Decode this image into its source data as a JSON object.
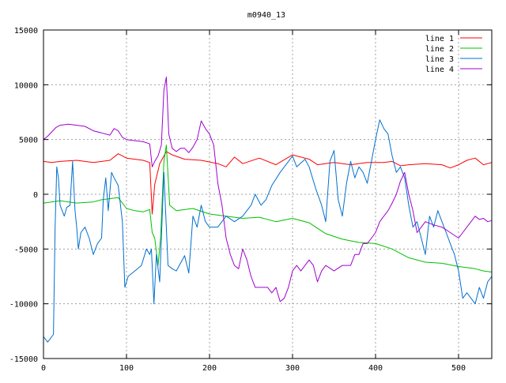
{
  "chart_data": {
    "type": "line",
    "title": "m0940_13",
    "xlabel": "",
    "ylabel": "",
    "xlim": [
      0,
      540
    ],
    "ylim": [
      -15000,
      15000
    ],
    "x_ticks": [
      0,
      100,
      200,
      300,
      400,
      500
    ],
    "y_ticks": [
      -15000,
      -10000,
      -5000,
      0,
      5000,
      10000,
      15000
    ],
    "x_tick_labels": [
      "0",
      "100",
      "200",
      "300",
      "400",
      "500"
    ],
    "y_tick_labels": [
      "-15000",
      "-10000",
      "-5000",
      "0",
      "5000",
      "10000",
      "15000"
    ],
    "grid": true,
    "legend_position": "top-right",
    "series": [
      {
        "name": "line 1",
        "color": "#ff0000",
        "points": [
          [
            0,
            3000
          ],
          [
            10,
            2900
          ],
          [
            20,
            3000
          ],
          [
            40,
            3100
          ],
          [
            60,
            2900
          ],
          [
            80,
            3100
          ],
          [
            90,
            3700
          ],
          [
            100,
            3300
          ],
          [
            110,
            3200
          ],
          [
            120,
            3100
          ],
          [
            128,
            2900
          ],
          [
            131,
            -1800
          ],
          [
            134,
            900
          ],
          [
            140,
            2800
          ],
          [
            148,
            3900
          ],
          [
            155,
            3600
          ],
          [
            170,
            3200
          ],
          [
            190,
            3100
          ],
          [
            210,
            2800
          ],
          [
            220,
            2500
          ],
          [
            230,
            3400
          ],
          [
            240,
            2800
          ],
          [
            260,
            3300
          ],
          [
            280,
            2700
          ],
          [
            300,
            3600
          ],
          [
            320,
            3200
          ],
          [
            330,
            2700
          ],
          [
            350,
            2900
          ],
          [
            370,
            2700
          ],
          [
            390,
            2900
          ],
          [
            410,
            2900
          ],
          [
            420,
            3000
          ],
          [
            430,
            2600
          ],
          [
            440,
            2700
          ],
          [
            460,
            2800
          ],
          [
            480,
            2700
          ],
          [
            490,
            2400
          ],
          [
            500,
            2700
          ],
          [
            510,
            3100
          ],
          [
            520,
            3300
          ],
          [
            530,
            2700
          ],
          [
            540,
            2900
          ]
        ]
      },
      {
        "name": "line 2",
        "color": "#00c000",
        "points": [
          [
            0,
            -800
          ],
          [
            10,
            -700
          ],
          [
            20,
            -600
          ],
          [
            40,
            -800
          ],
          [
            60,
            -700
          ],
          [
            70,
            -500
          ],
          [
            90,
            -300
          ],
          [
            100,
            -1300
          ],
          [
            110,
            -1500
          ],
          [
            120,
            -1600
          ],
          [
            128,
            -1400
          ],
          [
            131,
            -3500
          ],
          [
            134,
            -4000
          ],
          [
            138,
            -6500
          ],
          [
            141,
            -4000
          ],
          [
            145,
            3000
          ],
          [
            148,
            4500
          ],
          [
            152,
            -1000
          ],
          [
            160,
            -1500
          ],
          [
            180,
            -1300
          ],
          [
            200,
            -1800
          ],
          [
            220,
            -2000
          ],
          [
            240,
            -2200
          ],
          [
            260,
            -2100
          ],
          [
            280,
            -2500
          ],
          [
            300,
            -2200
          ],
          [
            320,
            -2600
          ],
          [
            340,
            -3600
          ],
          [
            360,
            -4100
          ],
          [
            380,
            -4400
          ],
          [
            400,
            -4500
          ],
          [
            420,
            -5000
          ],
          [
            440,
            -5800
          ],
          [
            460,
            -6200
          ],
          [
            480,
            -6300
          ],
          [
            500,
            -6600
          ],
          [
            520,
            -6800
          ],
          [
            530,
            -7000
          ],
          [
            540,
            -7100
          ]
        ]
      },
      {
        "name": "line 3",
        "color": "#0070d0",
        "points": [
          [
            0,
            -13000
          ],
          [
            5,
            -13500
          ],
          [
            12,
            -12800
          ],
          [
            14,
            -3000
          ],
          [
            16,
            2500
          ],
          [
            18,
            1500
          ],
          [
            20,
            -1000
          ],
          [
            25,
            -2000
          ],
          [
            28,
            -1200
          ],
          [
            32,
            -1000
          ],
          [
            35,
            3000
          ],
          [
            38,
            -1500
          ],
          [
            40,
            -3000
          ],
          [
            42,
            -5000
          ],
          [
            45,
            -3500
          ],
          [
            50,
            -3000
          ],
          [
            55,
            -4000
          ],
          [
            60,
            -5500
          ],
          [
            65,
            -4500
          ],
          [
            70,
            -4000
          ],
          [
            72,
            -500
          ],
          [
            75,
            1500
          ],
          [
            78,
            -1500
          ],
          [
            82,
            2000
          ],
          [
            85,
            1500
          ],
          [
            90,
            800
          ],
          [
            95,
            -2500
          ],
          [
            98,
            -8500
          ],
          [
            102,
            -7500
          ],
          [
            110,
            -7000
          ],
          [
            118,
            -6500
          ],
          [
            124,
            -5000
          ],
          [
            128,
            -5500
          ],
          [
            130,
            -5000
          ],
          [
            133,
            -10000
          ],
          [
            136,
            -5500
          ],
          [
            140,
            -8000
          ],
          [
            145,
            2000
          ],
          [
            150,
            -6500
          ],
          [
            155,
            -6800
          ],
          [
            160,
            -7000
          ],
          [
            170,
            -5600
          ],
          [
            175,
            -7200
          ],
          [
            180,
            -2000
          ],
          [
            185,
            -3000
          ],
          [
            190,
            -1000
          ],
          [
            195,
            -2500
          ],
          [
            200,
            -3000
          ],
          [
            210,
            -3000
          ],
          [
            220,
            -2000
          ],
          [
            230,
            -2500
          ],
          [
            240,
            -2000
          ],
          [
            250,
            -1000
          ],
          [
            255,
            0
          ],
          [
            262,
            -1000
          ],
          [
            268,
            -500
          ],
          [
            275,
            800
          ],
          [
            285,
            2000
          ],
          [
            295,
            3000
          ],
          [
            300,
            3500
          ],
          [
            305,
            2500
          ],
          [
            315,
            3200
          ],
          [
            320,
            2500
          ],
          [
            328,
            500
          ],
          [
            335,
            -1000
          ],
          [
            340,
            -2500
          ],
          [
            345,
            3000
          ],
          [
            350,
            4000
          ],
          [
            355,
            -500
          ],
          [
            360,
            -2000
          ],
          [
            365,
            1000
          ],
          [
            370,
            3000
          ],
          [
            375,
            1500
          ],
          [
            380,
            2500
          ],
          [
            385,
            2000
          ],
          [
            390,
            1000
          ],
          [
            395,
            3000
          ],
          [
            400,
            5000
          ],
          [
            405,
            6800
          ],
          [
            410,
            6000
          ],
          [
            415,
            5500
          ],
          [
            420,
            3500
          ],
          [
            425,
            2000
          ],
          [
            430,
            2500
          ],
          [
            435,
            1500
          ],
          [
            440,
            -1000
          ],
          [
            445,
            -3000
          ],
          [
            450,
            -2500
          ],
          [
            455,
            -4000
          ],
          [
            460,
            -5500
          ],
          [
            465,
            -2000
          ],
          [
            470,
            -3000
          ],
          [
            475,
            -1500
          ],
          [
            480,
            -2500
          ],
          [
            485,
            -3500
          ],
          [
            490,
            -4500
          ],
          [
            495,
            -5500
          ],
          [
            500,
            -7000
          ],
          [
            505,
            -9500
          ],
          [
            510,
            -9000
          ],
          [
            515,
            -9500
          ],
          [
            520,
            -10000
          ],
          [
            525,
            -8500
          ],
          [
            530,
            -9500
          ],
          [
            535,
            -8000
          ],
          [
            540,
            -7500
          ]
        ]
      },
      {
        "name": "line 4",
        "color": "#a000d0",
        "points": [
          [
            0,
            5000
          ],
          [
            5,
            5300
          ],
          [
            10,
            5700
          ],
          [
            15,
            6100
          ],
          [
            20,
            6300
          ],
          [
            30,
            6400
          ],
          [
            40,
            6300
          ],
          [
            50,
            6200
          ],
          [
            60,
            5800
          ],
          [
            70,
            5600
          ],
          [
            80,
            5400
          ],
          [
            85,
            6000
          ],
          [
            90,
            5800
          ],
          [
            95,
            5200
          ],
          [
            100,
            5000
          ],
          [
            110,
            4900
          ],
          [
            120,
            4800
          ],
          [
            128,
            4600
          ],
          [
            131,
            2500
          ],
          [
            134,
            3000
          ],
          [
            138,
            3500
          ],
          [
            142,
            4500
          ],
          [
            145,
            9500
          ],
          [
            148,
            10700
          ],
          [
            151,
            5500
          ],
          [
            155,
            4200
          ],
          [
            160,
            3900
          ],
          [
            165,
            4200
          ],
          [
            170,
            4200
          ],
          [
            175,
            3800
          ],
          [
            180,
            4300
          ],
          [
            185,
            5000
          ],
          [
            190,
            6700
          ],
          [
            195,
            6000
          ],
          [
            200,
            5500
          ],
          [
            205,
            4500
          ],
          [
            210,
            1000
          ],
          [
            215,
            -1000
          ],
          [
            220,
            -4000
          ],
          [
            225,
            -5500
          ],
          [
            230,
            -6500
          ],
          [
            235,
            -6800
          ],
          [
            240,
            -5000
          ],
          [
            245,
            -6000
          ],
          [
            250,
            -7500
          ],
          [
            255,
            -8500
          ],
          [
            260,
            -8500
          ],
          [
            270,
            -8500
          ],
          [
            275,
            -9000
          ],
          [
            280,
            -8500
          ],
          [
            285,
            -9800
          ],
          [
            290,
            -9500
          ],
          [
            295,
            -8500
          ],
          [
            300,
            -7000
          ],
          [
            305,
            -6500
          ],
          [
            310,
            -7000
          ],
          [
            315,
            -6500
          ],
          [
            320,
            -6000
          ],
          [
            325,
            -6500
          ],
          [
            330,
            -8000
          ],
          [
            335,
            -7000
          ],
          [
            340,
            -6500
          ],
          [
            350,
            -7000
          ],
          [
            360,
            -6500
          ],
          [
            370,
            -6500
          ],
          [
            375,
            -5500
          ],
          [
            380,
            -5500
          ],
          [
            385,
            -4500
          ],
          [
            390,
            -4500
          ],
          [
            395,
            -4000
          ],
          [
            400,
            -3500
          ],
          [
            405,
            -2500
          ],
          [
            410,
            -2000
          ],
          [
            415,
            -1500
          ],
          [
            420,
            -800
          ],
          [
            425,
            0
          ],
          [
            430,
            1200
          ],
          [
            435,
            2000
          ],
          [
            440,
            0
          ],
          [
            445,
            -1500
          ],
          [
            450,
            -3500
          ],
          [
            455,
            -3000
          ],
          [
            460,
            -2500
          ],
          [
            470,
            -2800
          ],
          [
            480,
            -3000
          ],
          [
            490,
            -3500
          ],
          [
            500,
            -4000
          ],
          [
            505,
            -3500
          ],
          [
            510,
            -3000
          ],
          [
            515,
            -2500
          ],
          [
            520,
            -2000
          ],
          [
            525,
            -2300
          ],
          [
            530,
            -2200
          ],
          [
            535,
            -2500
          ],
          [
            540,
            -2400
          ]
        ]
      }
    ]
  }
}
